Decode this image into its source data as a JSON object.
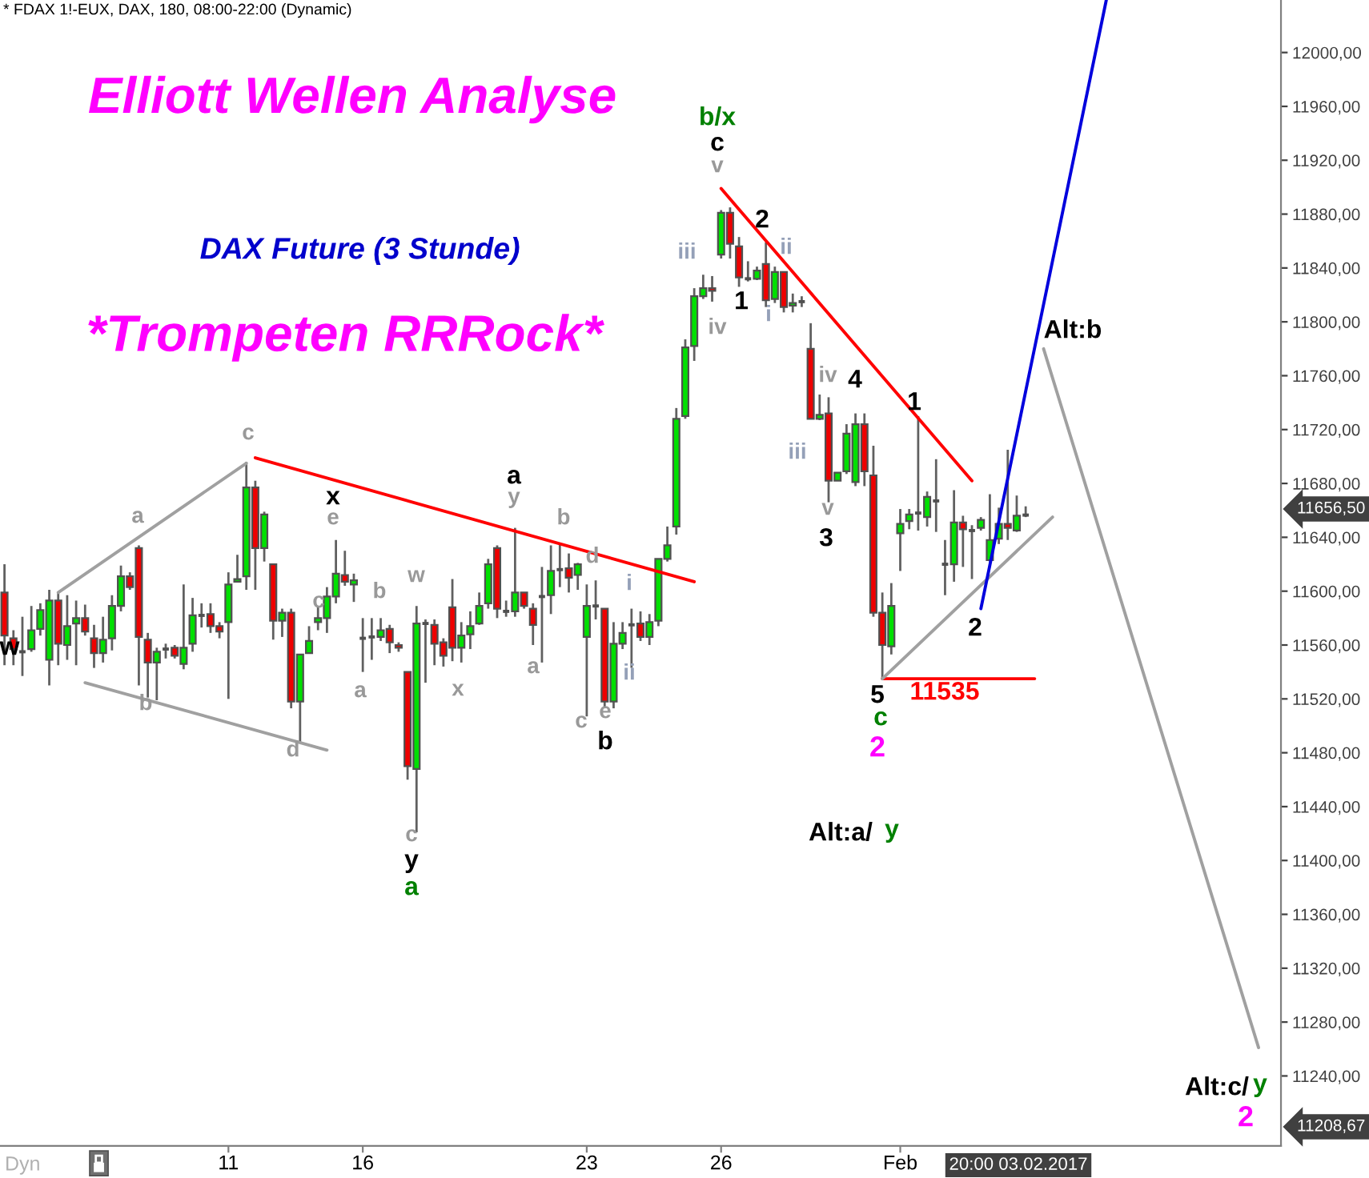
{
  "chart_data": {
    "type": "candlestick",
    "title": "Elliott Wellen Analyse",
    "subtitle": "DAX Future (3 Stunde)",
    "categories": [
      null,
      null,
      null,
      null,
      null,
      null,
      null,
      null,
      null,
      null,
      null,
      null,
      null,
      null,
      null,
      null,
      null,
      null,
      null,
      null,
      null,
      null,
      null,
      null,
      null,
      "11",
      null,
      null,
      null,
      null,
      null,
      null,
      null,
      null,
      null,
      null,
      null,
      null,
      null,
      null,
      "16",
      null,
      null,
      null,
      null,
      null,
      null,
      null,
      null,
      null,
      null,
      null,
      null,
      null,
      null,
      null,
      null,
      null,
      null,
      null,
      null,
      null,
      null,
      null,
      null,
      "23",
      null,
      null,
      null,
      null,
      null,
      null,
      null,
      null,
      null,
      null,
      null,
      null,
      null,
      null,
      "26",
      null,
      null,
      null,
      null,
      null,
      null,
      null,
      null,
      null,
      null,
      null,
      null,
      null,
      null,
      null,
      null,
      null,
      null,
      null,
      "Feb",
      null,
      null,
      null,
      null,
      null,
      null,
      null,
      null,
      null,
      null,
      null,
      null,
      null,
      null,
      null,
      null,
      null,
      null,
      null,
      null,
      null,
      null,
      null,
      null,
      null,
      null,
      null,
      null,
      null,
      null,
      null,
      null,
      null,
      null,
      null,
      null,
      null,
      null,
      null,
      null,
      null,
      null
    ],
    "series": [
      {
        "colors": [
          "#ee0000",
          "#ee0000",
          "#505050",
          "#00e000",
          "#00e000",
          "#00e000",
          "#ee0000",
          "#00e000",
          "#00e000",
          "#ee0000",
          "#ee0000",
          "#00e000",
          "#00e000",
          "#00e000",
          "#ee0000",
          "#ee0000",
          "#ee0000",
          "#00e000",
          "#505050",
          "#ee0000",
          "#00e000",
          "#00e000",
          "#505050",
          "#ee0000",
          "#ee0000",
          "#00e000",
          "#00e000",
          "#00e000",
          "#ee0000",
          "#00e000",
          "#ee0000",
          "#00e000",
          "#ee0000",
          "#00e000",
          "#00e000",
          "#00e000",
          "#00e000",
          "#00e000",
          "#ee0000",
          "#00e000",
          "#505050",
          "#505050",
          "#00e000",
          "#ee0000",
          "#ee0000",
          "#ee0000",
          "#00e000",
          "#505050",
          "#ee0000",
          "#ee0000",
          "#ee0000",
          "#00e000",
          "#00e000",
          "#00e000",
          "#00e000",
          "#ee0000",
          "#505050",
          "#00e000",
          "#ee0000",
          "#ee0000",
          "#505050",
          "#00e000",
          "#505050",
          "#ee0000",
          "#00e000",
          "#00e000",
          "#505050",
          "#ee0000",
          "#00e000",
          "#00e000",
          "#505050",
          "#ee0000",
          "#00e000",
          "#00e000",
          "#00e000",
          "#00e000",
          "#00e000",
          "#00e000",
          "#00e000",
          "#ee0000",
          "#00e000",
          "#ee0000",
          "#ee0000",
          "#505050",
          "#00e000",
          "#ee0000",
          "#00e000",
          "#ee0000",
          "#00e000",
          "#505050",
          "#ee0000",
          "#00e000",
          "#ee0000",
          "#00e000",
          "#00e000",
          "#00e000",
          "#ee0000",
          "#ee0000",
          "#ee0000",
          "#00e000",
          "#00e000",
          "#00e000",
          "#505050",
          "#00e000",
          "#505050",
          "#505050",
          "#00e000",
          "#ee0000",
          "#505050",
          "#00e000",
          "#00e000",
          "#00e000",
          "#ee0000",
          "#00e000",
          "#505050",
          null,
          null,
          null,
          null,
          null,
          null,
          null,
          null,
          null,
          null,
          null,
          null,
          null,
          null,
          null,
          null,
          null,
          null,
          null,
          null,
          null,
          null,
          null,
          null,
          null,
          null,
          null,
          null
        ],
        "ohlc": [
          [
            11599,
            11620,
            11545,
            11567
          ],
          [
            11565,
            11571,
            11545,
            11557
          ],
          [
            11555,
            11581,
            11537,
            11555
          ],
          [
            11557,
            11589,
            11555,
            11571
          ],
          [
            11572,
            11591,
            11567,
            11586
          ],
          [
            11549,
            11601,
            11530,
            11593
          ],
          [
            11593,
            11599,
            11545,
            11561
          ],
          [
            11560,
            11597,
            11549,
            11574
          ],
          [
            11576,
            11593,
            11545,
            11580
          ],
          [
            11580,
            11590,
            11567,
            11570
          ],
          [
            11565,
            11575,
            11543,
            11554
          ],
          [
            11554,
            11581,
            11547,
            11564
          ],
          [
            11565,
            11597,
            11556,
            11589
          ],
          [
            11589,
            11619,
            11585,
            11611
          ],
          [
            11611,
            11614,
            11601,
            11603
          ],
          [
            11632,
            11634,
            11530,
            11566
          ],
          [
            11564,
            11569,
            11521,
            11547
          ],
          [
            11547,
            11558,
            11519,
            11555
          ],
          [
            11557,
            11561,
            11550,
            11557
          ],
          [
            11558,
            11560,
            11550,
            11552
          ],
          [
            11546,
            11605,
            11542,
            11558
          ],
          [
            11561,
            11595,
            11555,
            11582
          ],
          [
            11582,
            11591,
            11573,
            11582
          ],
          [
            11583,
            11591,
            11569,
            11574
          ],
          [
            11574,
            11577,
            11565,
            11570
          ],
          [
            11577,
            11614,
            11520,
            11605
          ],
          [
            11607,
            11627,
            11607,
            11609
          ],
          [
            11611,
            11696,
            11601,
            11677
          ],
          [
            11677,
            11682,
            11601,
            11632
          ],
          [
            11632,
            11659,
            11622,
            11657
          ],
          [
            11620,
            11620,
            11564,
            11578
          ],
          [
            11578,
            11587,
            11566,
            11584
          ],
          [
            11584,
            11587,
            11513,
            11518
          ],
          [
            11518,
            11553,
            11487,
            11553
          ],
          [
            11554,
            11574,
            11554,
            11563
          ],
          [
            11577,
            11589,
            11571,
            11580
          ],
          [
            11580,
            11603,
            11569,
            11596
          ],
          [
            11596,
            11638,
            11591,
            11613
          ],
          [
            11612,
            11630,
            11604,
            11607
          ],
          [
            11605,
            11613,
            11592,
            11608
          ],
          [
            11565,
            11580,
            11540,
            11565
          ],
          [
            11566,
            11580,
            11549,
            11566
          ],
          [
            11566,
            11580,
            11563,
            11571
          ],
          [
            11572,
            11575,
            11554,
            11562
          ],
          [
            11560,
            11562,
            11555,
            11558
          ],
          [
            11540,
            11540,
            11460,
            11470
          ],
          [
            11468,
            11589,
            11421,
            11576
          ],
          [
            11576,
            11579,
            11532,
            11576
          ],
          [
            11575,
            11579,
            11545,
            11561
          ],
          [
            11562,
            11565,
            11544,
            11552
          ],
          [
            11588,
            11609,
            11548,
            11558
          ],
          [
            11558,
            11577,
            11547,
            11567
          ],
          [
            11568,
            11585,
            11557,
            11574
          ],
          [
            11576,
            11599,
            11575,
            11589
          ],
          [
            11591,
            11624,
            11587,
            11620
          ],
          [
            11632,
            11634,
            11580,
            11587
          ],
          [
            11585,
            11593,
            11581,
            11585
          ],
          [
            11585,
            11647,
            11581,
            11599
          ],
          [
            11599,
            11599,
            11587,
            11589
          ],
          [
            11587,
            11591,
            11560,
            11575
          ],
          [
            11596,
            11618,
            11547,
            11596
          ],
          [
            11597,
            11634,
            11583,
            11615
          ],
          [
            11616,
            11636,
            11603,
            11616
          ],
          [
            11617,
            11628,
            11599,
            11610
          ],
          [
            11612,
            11621,
            11601,
            11620
          ],
          [
            11566,
            11605,
            11507,
            11589
          ],
          [
            11589,
            11608,
            11579,
            11589
          ],
          [
            11587,
            11587,
            11513,
            11518
          ],
          [
            11518,
            11577,
            11513,
            11561
          ],
          [
            11561,
            11577,
            11557,
            11569
          ],
          [
            11575,
            11587,
            11543,
            11575
          ],
          [
            11576,
            11585,
            11563,
            11566
          ],
          [
            11566,
            11583,
            11560,
            11577
          ],
          [
            11578,
            11624,
            11574,
            11624
          ],
          [
            11624,
            11648,
            11622,
            11634
          ],
          [
            11648,
            11736,
            11642,
            11728
          ],
          [
            11730,
            11787,
            11728,
            11781
          ],
          [
            11782,
            11825,
            11771,
            11819
          ],
          [
            11819,
            11835,
            11817,
            11825
          ],
          [
            11825,
            11834,
            11815,
            11823
          ],
          [
            11850,
            11883,
            11847,
            11881
          ],
          [
            11881,
            11885,
            11847,
            11858
          ],
          [
            11856,
            11863,
            11826,
            11833
          ],
          [
            11832,
            11845,
            11830,
            11832
          ],
          [
            11832,
            11841,
            11831,
            11838
          ],
          [
            11843,
            11859,
            11811,
            11816
          ],
          [
            11817,
            11841,
            11814,
            11837
          ],
          [
            11837,
            11837,
            11807,
            11811
          ],
          [
            11812,
            11821,
            11807,
            11814
          ],
          [
            11815,
            11819,
            11811,
            11815
          ],
          [
            11780,
            11799,
            11728,
            11728
          ],
          [
            11728,
            11746,
            11727,
            11731
          ],
          [
            11732,
            11744,
            11666,
            11682
          ],
          [
            11682,
            11688,
            11682,
            11688
          ],
          [
            11689,
            11724,
            11687,
            11717
          ],
          [
            11681,
            11732,
            11678,
            11724
          ],
          [
            11724,
            11732,
            11678,
            11689
          ],
          [
            11686,
            11708,
            11581,
            11584
          ],
          [
            11584,
            11599,
            11535,
            11560
          ],
          [
            11559,
            11606,
            11553,
            11589
          ],
          [
            11643,
            11661,
            11615,
            11650
          ],
          [
            11652,
            11661,
            11646,
            11657
          ],
          [
            11658,
            11730,
            11645,
            11658
          ],
          [
            11655,
            11674,
            11648,
            11670
          ],
          [
            11667,
            11698,
            11644,
            11667
          ],
          [
            11620,
            11638,
            11597,
            11620
          ],
          [
            11620,
            11675,
            11607,
            11651
          ],
          [
            11651,
            11656,
            11618,
            11646
          ],
          [
            11645,
            11649,
            11609,
            11645
          ],
          [
            11647,
            11655,
            11645,
            11653
          ],
          [
            11623,
            11672,
            11622,
            11638
          ],
          [
            11639,
            11662,
            11635,
            11650
          ],
          [
            11650,
            11705,
            11638,
            11647
          ],
          [
            11645,
            11671,
            11644,
            11656
          ],
          [
            11656.5,
            11663,
            11655,
            11656.5
          ],
          null,
          null,
          null,
          null,
          null,
          null,
          null,
          null,
          null,
          null,
          null,
          null,
          null,
          null,
          null,
          null,
          null,
          null,
          null,
          null,
          null,
          null,
          null,
          null,
          null,
          null,
          null,
          null
        ]
      },
      {
        "type": "line",
        "color": "#a0a0a0",
        "values": [
          null,
          null,
          null,
          null,
          null,
          null,
          11599,
          null,
          null,
          null,
          null,
          null,
          null,
          null,
          null,
          null,
          null,
          null,
          null,
          null,
          null,
          null,
          null,
          null,
          null,
          null,
          null,
          11695,
          null,
          null,
          null,
          null,
          null,
          null,
          null,
          null,
          null,
          null,
          null,
          null,
          null,
          null,
          null,
          null,
          null,
          null,
          null,
          null,
          null,
          null,
          null,
          null,
          null,
          null,
          null,
          null,
          null,
          null,
          null,
          null,
          null,
          null,
          null,
          null,
          null,
          null,
          null,
          null,
          null,
          null,
          null,
          null,
          null,
          null,
          null,
          null,
          null,
          null,
          null,
          null,
          null,
          null,
          null,
          null,
          null,
          null,
          null,
          null,
          null,
          null,
          null,
          null,
          null,
          null,
          null,
          null,
          null,
          null,
          null,
          null,
          null,
          null,
          null,
          null,
          null,
          null,
          null,
          null,
          null,
          null,
          null,
          null,
          null,
          null,
          null,
          null,
          null,
          null,
          null,
          null,
          null,
          null,
          null,
          null,
          null,
          null,
          null,
          null,
          null,
          null,
          null,
          null,
          null,
          null,
          null,
          null,
          null,
          null,
          null,
          null,
          null,
          null,
          null
        ]
      },
      {
        "type": "line",
        "color": "#a0a0a0",
        "values": [
          null,
          null,
          null,
          null,
          null,
          null,
          null,
          null,
          null,
          11532,
          null,
          null,
          null,
          null,
          null,
          null,
          null,
          null,
          null,
          null,
          null,
          null,
          null,
          null,
          null,
          null,
          null,
          null,
          null,
          null,
          null,
          null,
          null,
          null,
          null,
          null,
          11482,
          null,
          null,
          null,
          null,
          null,
          null,
          null,
          null,
          null,
          null,
          null,
          null,
          null,
          null,
          null,
          null,
          null,
          null,
          null,
          null,
          null,
          null,
          null,
          null,
          null,
          null,
          null,
          null,
          null,
          null,
          null,
          null,
          null,
          null,
          null,
          null,
          null,
          null,
          null,
          null,
          null,
          null,
          null,
          null,
          null,
          null,
          null,
          null,
          null,
          null,
          null,
          null,
          null,
          null,
          null,
          null,
          null,
          null,
          null,
          null,
          null,
          null,
          null,
          null,
          null,
          null,
          null,
          null,
          null,
          null,
          null,
          null,
          null,
          null,
          null,
          null,
          null,
          null,
          null,
          null,
          null,
          null,
          null,
          null,
          null,
          null,
          null,
          null,
          null,
          null,
          null,
          null,
          null,
          null,
          null,
          null,
          null,
          null,
          null,
          null,
          null,
          null,
          null,
          null,
          null,
          null
        ]
      },
      {
        "type": "line",
        "color": "#ff0000",
        "values": [
          null,
          null,
          null,
          null,
          null,
          null,
          null,
          null,
          null,
          null,
          null,
          null,
          null,
          null,
          null,
          null,
          null,
          null,
          null,
          null,
          null,
          null,
          null,
          null,
          null,
          null,
          null,
          null,
          11699,
          null,
          null,
          null,
          null,
          null,
          null,
          null,
          null,
          null,
          null,
          null,
          null,
          null,
          null,
          null,
          null,
          null,
          null,
          null,
          null,
          null,
          null,
          null,
          null,
          null,
          null,
          null,
          null,
          null,
          null,
          null,
          null,
          null,
          null,
          null,
          null,
          null,
          null,
          null,
          null,
          null,
          null,
          null,
          null,
          null,
          null,
          null,
          null,
          11607,
          null,
          null,
          null,
          null,
          null,
          null,
          null,
          null,
          null,
          null,
          null,
          null,
          null,
          null,
          null,
          null,
          null,
          null,
          null,
          null,
          null,
          null,
          null,
          null,
          null,
          null,
          null,
          null,
          null,
          null,
          null,
          null,
          null,
          null,
          null,
          null,
          null,
          null,
          null,
          null,
          null,
          null,
          null,
          null,
          null,
          null,
          null,
          null,
          null,
          null,
          null,
          null,
          null,
          null,
          null,
          null,
          null,
          null,
          null,
          null,
          null,
          null,
          null,
          null,
          null
        ]
      },
      {
        "type": "line",
        "color": "#ff0000",
        "values": [
          null,
          null,
          null,
          null,
          null,
          null,
          null,
          null,
          null,
          null,
          null,
          null,
          null,
          null,
          null,
          null,
          null,
          null,
          null,
          null,
          null,
          null,
          null,
          null,
          null,
          null,
          null,
          null,
          null,
          null,
          null,
          null,
          null,
          null,
          null,
          null,
          null,
          null,
          null,
          null,
          null,
          null,
          null,
          null,
          null,
          null,
          null,
          null,
          null,
          null,
          null,
          null,
          null,
          null,
          null,
          null,
          null,
          null,
          null,
          null,
          null,
          null,
          null,
          null,
          null,
          null,
          null,
          null,
          null,
          null,
          null,
          null,
          null,
          null,
          null,
          null,
          null,
          null,
          null,
          null,
          11899,
          null,
          null,
          null,
          null,
          null,
          null,
          null,
          null,
          null,
          null,
          null,
          null,
          null,
          null,
          null,
          null,
          null,
          null,
          null,
          null,
          null,
          null,
          null,
          null,
          null,
          null,
          null,
          11682,
          null,
          null,
          null,
          null,
          null,
          null,
          null,
          null,
          null,
          null,
          null,
          null,
          null,
          null,
          null,
          null,
          null,
          null,
          null,
          null,
          null,
          null,
          null,
          null,
          null,
          null,
          null,
          null,
          null,
          null,
          null,
          null,
          null,
          null
        ]
      },
      {
        "type": "line",
        "color": "#ff0000",
        "values": [
          null,
          null,
          null,
          null,
          null,
          null,
          null,
          null,
          null,
          null,
          null,
          null,
          null,
          null,
          null,
          null,
          null,
          null,
          null,
          null,
          null,
          null,
          null,
          null,
          null,
          null,
          null,
          null,
          null,
          null,
          null,
          null,
          null,
          null,
          null,
          null,
          null,
          null,
          null,
          null,
          null,
          null,
          null,
          null,
          null,
          null,
          null,
          null,
          null,
          null,
          null,
          null,
          null,
          null,
          null,
          null,
          null,
          null,
          null,
          null,
          null,
          null,
          null,
          null,
          null,
          null,
          null,
          null,
          null,
          null,
          null,
          null,
          null,
          null,
          null,
          null,
          null,
          null,
          null,
          null,
          null,
          null,
          null,
          null,
          null,
          null,
          null,
          null,
          null,
          null,
          null,
          null,
          null,
          null,
          null,
          null,
          null,
          null,
          11535,
          null,
          null,
          null,
          null,
          null,
          null,
          null,
          null,
          null,
          null,
          null,
          null,
          null,
          null,
          null,
          null,
          11535,
          null,
          null,
          null,
          null,
          null,
          null,
          null,
          null,
          null,
          null,
          null,
          null,
          null,
          null,
          null,
          null,
          null,
          null,
          null,
          null,
          null,
          null,
          null,
          null,
          null,
          null,
          null
        ]
      },
      {
        "type": "line",
        "color": "#a0a0a0",
        "values": [
          null,
          null,
          null,
          null,
          null,
          null,
          null,
          null,
          null,
          null,
          null,
          null,
          null,
          null,
          null,
          null,
          null,
          null,
          null,
          null,
          null,
          null,
          null,
          null,
          null,
          null,
          null,
          null,
          null,
          null,
          null,
          null,
          null,
          null,
          null,
          null,
          null,
          null,
          null,
          null,
          null,
          null,
          null,
          null,
          null,
          null,
          null,
          null,
          null,
          null,
          null,
          null,
          null,
          null,
          null,
          null,
          null,
          null,
          null,
          null,
          null,
          null,
          null,
          null,
          null,
          null,
          null,
          null,
          null,
          null,
          null,
          null,
          null,
          null,
          null,
          null,
          null,
          null,
          null,
          null,
          null,
          null,
          null,
          null,
          null,
          null,
          null,
          null,
          null,
          null,
          null,
          null,
          null,
          null,
          null,
          null,
          null,
          null,
          11535,
          null,
          null,
          null,
          null,
          null,
          null,
          null,
          null,
          null,
          null,
          null,
          null,
          null,
          null,
          null,
          null,
          null,
          null,
          11655,
          null,
          null,
          null,
          null,
          null,
          null,
          null,
          null,
          null,
          null,
          null,
          null,
          null,
          null,
          null,
          null,
          null,
          null,
          null,
          null,
          null,
          null,
          null,
          null,
          null
        ]
      },
      {
        "type": "line",
        "color": "#0000dd",
        "values": [
          null,
          null,
          null,
          null,
          null,
          null,
          null,
          null,
          null,
          null,
          null,
          null,
          null,
          null,
          null,
          null,
          null,
          null,
          null,
          null,
          null,
          null,
          null,
          null,
          null,
          null,
          null,
          null,
          null,
          null,
          null,
          null,
          null,
          null,
          null,
          null,
          null,
          null,
          null,
          null,
          null,
          null,
          null,
          null,
          null,
          null,
          null,
          null,
          null,
          null,
          null,
          null,
          null,
          null,
          null,
          null,
          null,
          null,
          null,
          null,
          null,
          null,
          null,
          null,
          null,
          null,
          null,
          null,
          null,
          null,
          null,
          null,
          null,
          null,
          null,
          null,
          null,
          null,
          null,
          null,
          null,
          null,
          null,
          null,
          null,
          null,
          null,
          null,
          null,
          null,
          null,
          null,
          null,
          null,
          null,
          null,
          null,
          null,
          null,
          null,
          null,
          null,
          null,
          null,
          null,
          null,
          null,
          null,
          null,
          11587,
          null,
          null,
          null,
          null,
          null,
          null,
          null,
          null,
          null,
          null,
          null,
          null,
          null,
          12039,
          null,
          null,
          null,
          null,
          null,
          null,
          null,
          null,
          null,
          null,
          null,
          null,
          null,
          null,
          null,
          null,
          null,
          null,
          null
        ]
      },
      {
        "type": "line",
        "color": "#a0a0a0",
        "values": [
          null,
          null,
          null,
          null,
          null,
          null,
          null,
          null,
          null,
          null,
          null,
          null,
          null,
          null,
          null,
          null,
          null,
          null,
          null,
          null,
          null,
          null,
          null,
          null,
          null,
          null,
          null,
          null,
          null,
          null,
          null,
          null,
          null,
          null,
          null,
          null,
          null,
          null,
          null,
          null,
          null,
          null,
          null,
          null,
          null,
          null,
          null,
          null,
          null,
          null,
          null,
          null,
          null,
          null,
          null,
          null,
          null,
          null,
          null,
          null,
          null,
          null,
          null,
          null,
          null,
          null,
          null,
          null,
          null,
          null,
          null,
          null,
          null,
          null,
          null,
          null,
          null,
          null,
          null,
          null,
          null,
          null,
          null,
          null,
          null,
          null,
          null,
          null,
          null,
          null,
          null,
          null,
          null,
          null,
          null,
          null,
          null,
          null,
          null,
          null,
          null,
          null,
          null,
          null,
          null,
          null,
          null,
          null,
          null,
          null,
          null,
          null,
          null,
          null,
          null,
          null,
          11780,
          null,
          null,
          null,
          null,
          null,
          null,
          null,
          null,
          null,
          null,
          null,
          null,
          null,
          null,
          null,
          null,
          null,
          null,
          null,
          null,
          null,
          null,
          null,
          11261,
          null,
          null
        ]
      }
    ],
    "ylim": [
      11188,
      12039
    ],
    "yticks": [
      {
        "value": 11240,
        "label": "11240,00"
      },
      {
        "value": 11280,
        "label": "11280,00"
      },
      {
        "value": 11320,
        "label": "11320,00"
      },
      {
        "value": 11360,
        "label": "11360,00"
      },
      {
        "value": 11400,
        "label": "11400,00"
      },
      {
        "value": 11440,
        "label": "11440,00"
      },
      {
        "value": 11480,
        "label": "11480,00"
      },
      {
        "value": 11520,
        "label": "11520,00"
      },
      {
        "value": 11560,
        "label": "11560,00"
      },
      {
        "value": 11600,
        "label": "11600,00"
      },
      {
        "value": 11640,
        "label": "11640,00"
      },
      {
        "value": 11680,
        "label": "11680,00"
      },
      {
        "value": 11720,
        "label": "11720,00"
      },
      {
        "value": 11760,
        "label": "11760,00"
      },
      {
        "value": 11800,
        "label": "11800,00"
      },
      {
        "value": 11840,
        "label": "11840,00"
      },
      {
        "value": 11880,
        "label": "11880,00"
      },
      {
        "value": 11920,
        "label": "11920,00"
      },
      {
        "value": 11960,
        "label": "11960,00"
      },
      {
        "value": 12000,
        "label": "12000,00"
      }
    ],
    "annotations": [
      "* FDAX 1!-EUX, DAX, 180, 08:00-22:00 (Dynamic)",
      "*Trompeten RRRock*",
      "Dyn",
      "20:00 03.02.2017",
      "w",
      "a",
      "b",
      "c",
      "x",
      "e",
      "c",
      "d",
      "a",
      "b",
      "w",
      "c",
      "y",
      "a",
      "x",
      "a",
      "y",
      "a",
      "b",
      "d",
      "c",
      "e",
      "b",
      "i",
      "ii",
      "iii",
      "iv",
      "v",
      "c",
      "b/x",
      "1",
      "2",
      "i",
      "ii",
      "iii",
      "iv",
      "v",
      "3",
      "4",
      "5",
      "c",
      "2",
      "1",
      "11535",
      "2",
      "Alt:b",
      "Alt:a/",
      "y",
      "Alt:c/",
      "y",
      "2",
      "11656,50",
      "11208,67"
    ]
  }
}
